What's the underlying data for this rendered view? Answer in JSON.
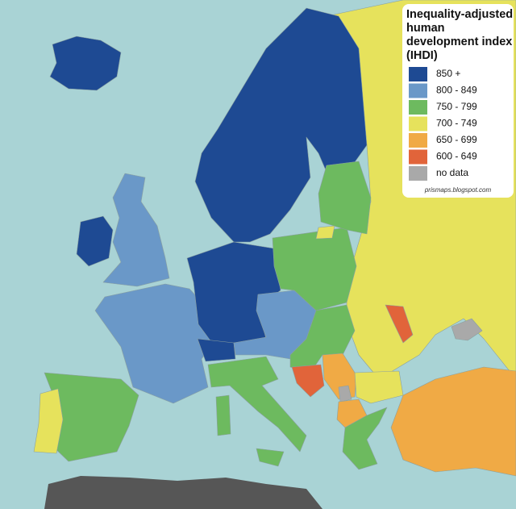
{
  "legend": {
    "title_lines": [
      "Inequality-adjusted",
      "human",
      "development index",
      "(IHDI)"
    ],
    "items": [
      {
        "label": "850 +",
        "color": "#1e4a93"
      },
      {
        "label": "800 - 849",
        "color": "#6a98c8"
      },
      {
        "label": "750 - 799",
        "color": "#6dba5f"
      },
      {
        "label": "700 - 749",
        "color": "#e6e25c"
      },
      {
        "label": "650 - 699",
        "color": "#f0aa45"
      },
      {
        "label": "600 - 649",
        "color": "#e1643a"
      },
      {
        "label": "no data",
        "color": "#a9a9a9"
      }
    ],
    "credit": "prismaps.blogspot.com"
  }
}
